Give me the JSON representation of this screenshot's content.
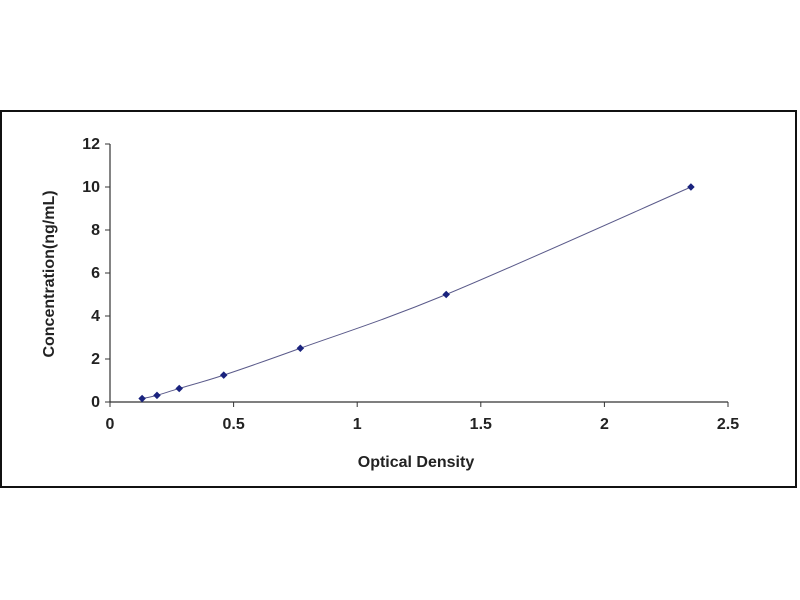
{
  "chart_data": {
    "type": "scatter",
    "title": "",
    "xlabel": "Optical Density",
    "ylabel": "Concentration(ng/mL)",
    "xlim": [
      0,
      2.5
    ],
    "ylim": [
      0,
      12
    ],
    "xticks": [
      0,
      0.5,
      1,
      1.5,
      2,
      2.5
    ],
    "yticks": [
      0,
      2,
      4,
      6,
      8,
      10,
      12
    ],
    "xtick_labels": [
      "0",
      "0.5",
      "1",
      "1.5",
      "2",
      "2.5"
    ],
    "ytick_labels": [
      "0",
      "2",
      "4",
      "6",
      "8",
      "10",
      "12"
    ],
    "grid": false,
    "legend": "none",
    "series": [
      {
        "points": [
          {
            "x": 0.13,
            "y": 0.16
          },
          {
            "x": 0.19,
            "y": 0.31
          },
          {
            "x": 0.28,
            "y": 0.63
          },
          {
            "x": 0.46,
            "y": 1.25
          },
          {
            "x": 0.77,
            "y": 2.5
          },
          {
            "x": 1.36,
            "y": 5.0
          },
          {
            "x": 2.35,
            "y": 10.0
          }
        ],
        "fit": "smooth curve",
        "marker": "diamond",
        "color": "#1a237e"
      }
    ],
    "colors": {
      "marker": "#1a237e",
      "curve": "#5a5a8a",
      "axis": "#333333",
      "frame": "#111111"
    }
  }
}
